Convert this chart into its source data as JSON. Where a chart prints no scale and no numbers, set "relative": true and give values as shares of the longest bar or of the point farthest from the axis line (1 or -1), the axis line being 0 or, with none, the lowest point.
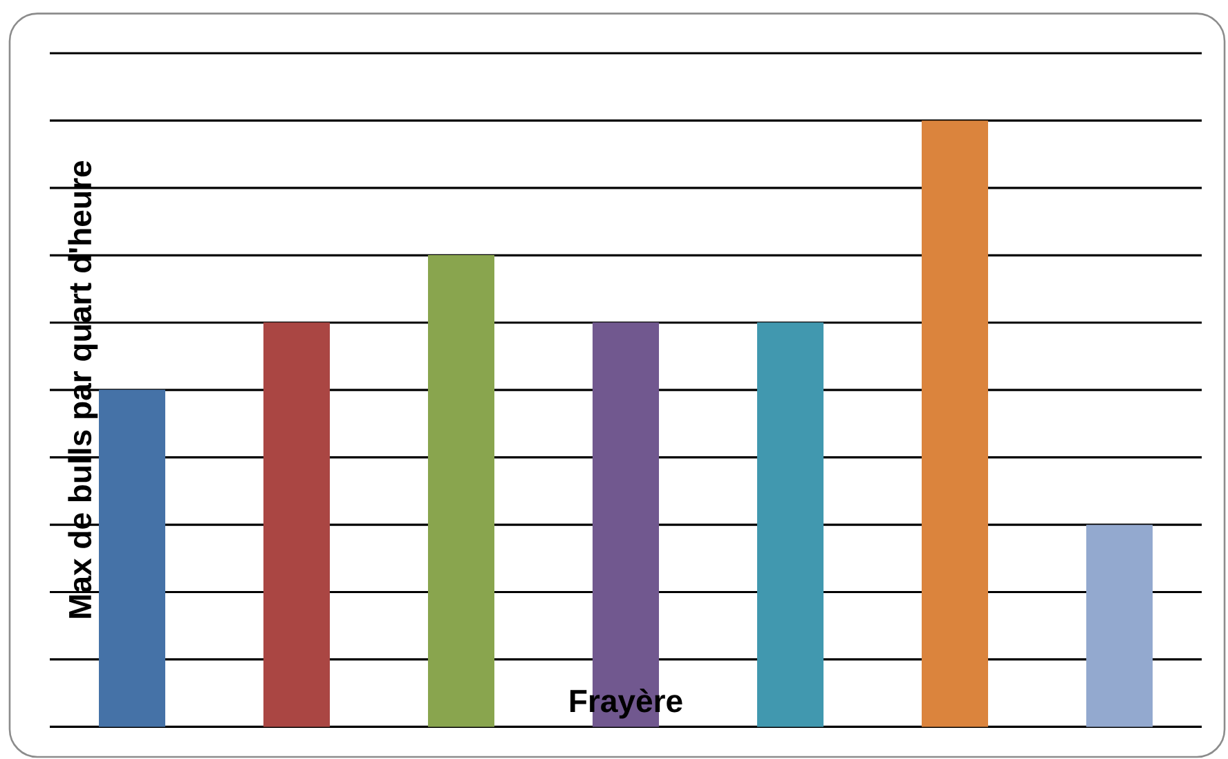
{
  "chart_data": {
    "type": "bar",
    "xlabel": "Frayère",
    "ylabel": "Max de bulls par quart d'heure",
    "categories": [
      null,
      null,
      null,
      null,
      null,
      null,
      null
    ],
    "values": [
      0.556,
      0.667,
      0.778,
      0.667,
      0.667,
      1,
      0.333
    ],
    "colors": [
      "#4572A7",
      "#AA4643",
      "#89A54E",
      "#71588F",
      "#4198AF",
      "#DB843D",
      "#93A9CF"
    ],
    "relative": true,
    "grid": "y"
  }
}
